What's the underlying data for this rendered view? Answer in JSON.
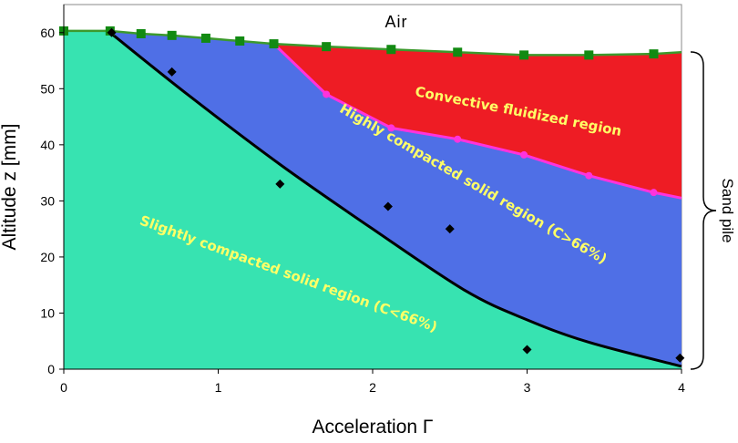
{
  "chart_data": {
    "type": "area",
    "title": "",
    "xlabel": "Acceleration Γ",
    "ylabel": "Altitude z [mm]",
    "xlim": [
      0,
      4
    ],
    "ylim": [
      0,
      65
    ],
    "xticks": [
      "0",
      "1",
      "2",
      "3",
      "4"
    ],
    "yticks": [
      "0",
      "10",
      "20",
      "30",
      "40",
      "50",
      "60"
    ],
    "grid": false,
    "colors": {
      "air": "#ffffff",
      "convective": "#ee1c24",
      "highly_compacted": "#4f6fe6",
      "slightly_compacted": "#37e3b1",
      "surface_line": "#3c9a2d",
      "surface_marker": "#128a12",
      "fluidized_line": "#ff33dd",
      "boundary_line": "#000000",
      "label_yellow": "#ffff66"
    },
    "regions": {
      "air": "Air",
      "convective": "Convective fluidized region",
      "highly_compacted": "Highly compacted solid region (C>66%)",
      "slightly_compacted": "Slightly compacted solid region (C<66%)",
      "sand_pile": "Sand pile"
    },
    "series": [
      {
        "type": "line-with-markers",
        "marker": "square",
        "x": [
          0.0,
          0.3,
          0.5,
          0.7,
          0.92,
          1.14,
          1.36,
          1.7,
          2.12,
          2.55,
          2.98,
          3.4,
          3.82
        ],
        "y": [
          60.3,
          60.3,
          59.8,
          59.5,
          59.0,
          58.5,
          58.0,
          57.5,
          57.0,
          56.5,
          56.0,
          56.0,
          56.2
        ]
      },
      {
        "type": "line-with-markers",
        "marker": "circle",
        "x": [
          1.36,
          1.7,
          2.12,
          2.55,
          2.98,
          3.4,
          3.82
        ],
        "y": [
          58.0,
          49.0,
          43.0,
          41.0,
          38.2,
          34.5,
          31.5
        ]
      },
      {
        "type": "scatter",
        "marker": "diamond",
        "x": [
          0.31,
          0.7,
          1.4,
          2.1,
          2.5,
          3.0,
          3.99
        ],
        "y": [
          60.0,
          53.0,
          33.0,
          29.0,
          25.0,
          3.5,
          2.0
        ]
      }
    ],
    "boundary_curve": {
      "x": [
        0.3,
        0.8,
        1.4,
        2.0,
        2.6,
        3.0,
        3.4,
        4.0
      ],
      "y": [
        60.0,
        49.0,
        36.5,
        25.0,
        14.0,
        8.8,
        4.8,
        0.5
      ]
    },
    "surface_end": {
      "x": 4.0,
      "y": 56.5
    },
    "fluidized_end": {
      "x": 4.0,
      "y": 30.5
    }
  }
}
